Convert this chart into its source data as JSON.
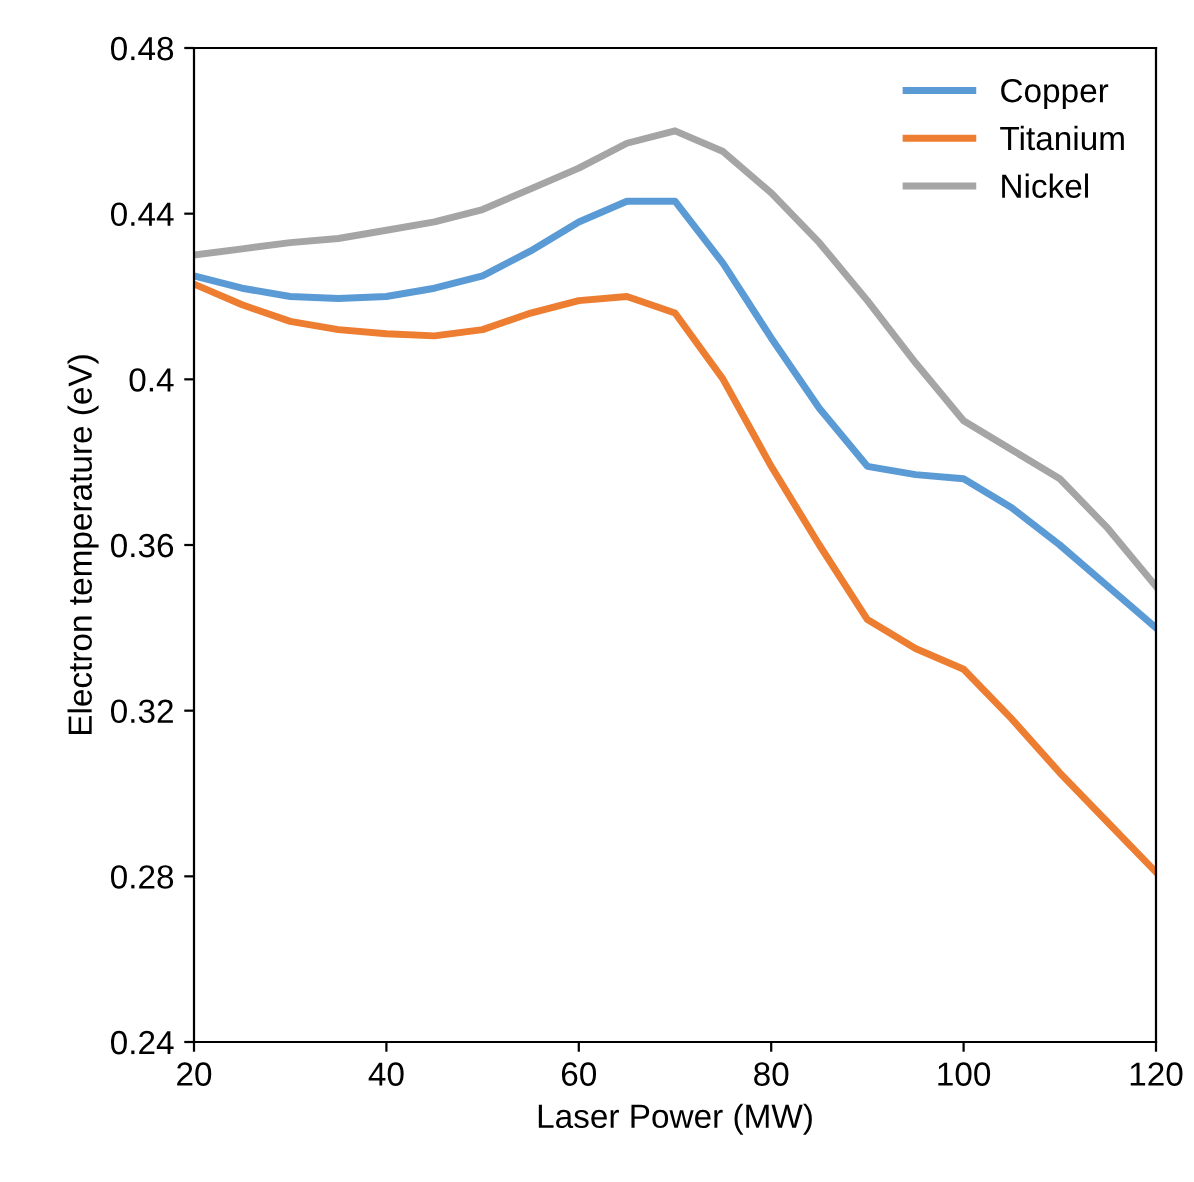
{
  "chart_data": {
    "type": "line",
    "xlabel": "Laser Power (MW)",
    "ylabel": "Electron temperature (eV)",
    "x": [
      20,
      25,
      30,
      35,
      40,
      45,
      50,
      55,
      60,
      65,
      70,
      75,
      80,
      85,
      90,
      95,
      100,
      105,
      110,
      115,
      120
    ],
    "series": [
      {
        "name": "Copper",
        "color": "#5b9bd5",
        "values": [
          0.425,
          0.422,
          0.42,
          0.4195,
          0.42,
          0.422,
          0.425,
          0.431,
          0.438,
          0.443,
          0.443,
          0.428,
          0.41,
          0.393,
          0.379,
          0.377,
          0.376,
          0.369,
          0.36,
          0.35,
          0.34
        ]
      },
      {
        "name": "Titanium",
        "color": "#ed7d31",
        "values": [
          0.423,
          0.418,
          0.414,
          0.412,
          0.411,
          0.4105,
          0.412,
          0.416,
          0.419,
          0.42,
          0.416,
          0.4,
          0.379,
          0.36,
          0.342,
          0.335,
          0.33,
          0.318,
          0.305,
          0.293,
          0.281
        ]
      },
      {
        "name": "Nickel",
        "color": "#a5a5a5",
        "values": [
          0.43,
          0.4315,
          0.433,
          0.434,
          0.436,
          0.438,
          0.441,
          0.446,
          0.451,
          0.457,
          0.46,
          0.455,
          0.445,
          0.433,
          0.419,
          0.404,
          0.39,
          0.383,
          0.376,
          0.364,
          0.35
        ]
      }
    ],
    "xlim": [
      20,
      120
    ],
    "xticks": [
      20,
      40,
      60,
      80,
      100,
      120
    ],
    "ylim": [
      0.24,
      0.48
    ],
    "yticks": [
      0.24,
      0.28,
      0.32,
      0.36,
      0.4,
      0.44,
      0.48
    ],
    "grid": false,
    "legend": "top right",
    "marker": "none",
    "line_style": "solid"
  }
}
